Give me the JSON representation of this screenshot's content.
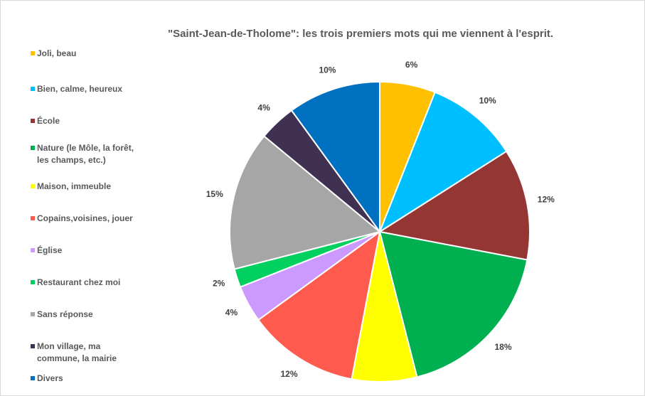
{
  "chart_data": {
    "type": "pie",
    "title": "\"Saint-Jean-de-Tholome\":  les trois premiers mots qui me viennent à l'esprit.",
    "categories": [
      "Joli, beau",
      "Bien, calme, heureux",
      "École",
      "Nature (le Môle, la forêt, les champs, etc.)",
      "Maison, immeuble",
      "Copains,voisines,  jouer",
      "Église",
      "Restaurant chez moi",
      "Sans réponse",
      "Mon village, ma commune, la mairie",
      "Divers"
    ],
    "values": [
      6,
      10,
      12,
      18,
      7,
      12,
      4,
      2,
      15,
      4,
      10
    ],
    "colors": [
      "#ffc000",
      "#00bfff",
      "#943634",
      "#00b050",
      "#ffff00",
      "#ff5a4e",
      "#cc99ff",
      "#00d060",
      "#a6a6a6",
      "#403152",
      "#0070c0"
    ],
    "legend": "left"
  }
}
